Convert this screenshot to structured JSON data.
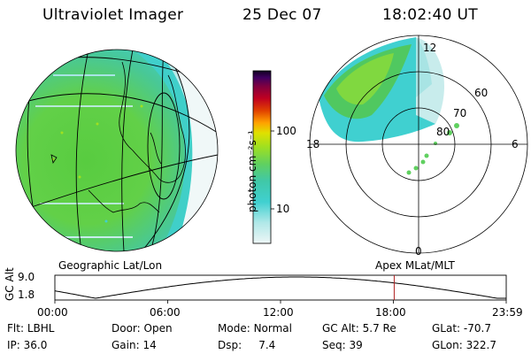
{
  "header": {
    "instrument": "Ultraviolet Imager",
    "date": "25 Dec 07",
    "time": "18:02:40 UT"
  },
  "colorbar": {
    "unit_label": "photon cm⁻²s⁻¹",
    "ticks": [
      "100",
      "10"
    ],
    "scale": "log",
    "colors": [
      "#e8f4f4",
      "#a8e4e4",
      "#40d0d0",
      "#40c8b0",
      "#60d060",
      "#a0e020",
      "#e0e000",
      "#ffa000",
      "#e04000",
      "#c00020",
      "#800040",
      "#400060",
      "#100020"
    ]
  },
  "left_panel": {
    "caption": "Geographic Lat/Lon"
  },
  "right_panel": {
    "caption": "Apex  MLat/MLT",
    "mlt_labels": {
      "top": "12",
      "left": "18",
      "right": "6",
      "bottom": "0"
    },
    "mlat_labels": [
      "60",
      "70",
      "80"
    ]
  },
  "timeline": {
    "axis_label": "GC Alt",
    "y_ticks": [
      "9.0",
      "1.8"
    ],
    "x_ticks": [
      "00:00",
      "06:00",
      "12:00",
      "18:00",
      "23:59"
    ],
    "current_time_fraction": 0.7518,
    "marker_color": "#b02020"
  },
  "info_rows": [
    [
      {
        "label": "Flt:",
        "value": "LBHL"
      },
      {
        "label": "Door:",
        "value": "Open"
      },
      {
        "label": "Mode:",
        "value": "Normal"
      },
      {
        "label": "GC Alt:",
        "value": "5.7 Re"
      },
      {
        "label": "GLat:",
        "value": "-70.7"
      }
    ],
    [
      {
        "label": "IP:",
        "value": "36.0"
      },
      {
        "label": "Gain:",
        "value": "14"
      },
      {
        "label": "Dsp:",
        "value": "7.4"
      },
      {
        "label": "Seq:",
        "value": "39"
      },
      {
        "label": "GLon:",
        "value": "322.7"
      }
    ]
  ]
}
